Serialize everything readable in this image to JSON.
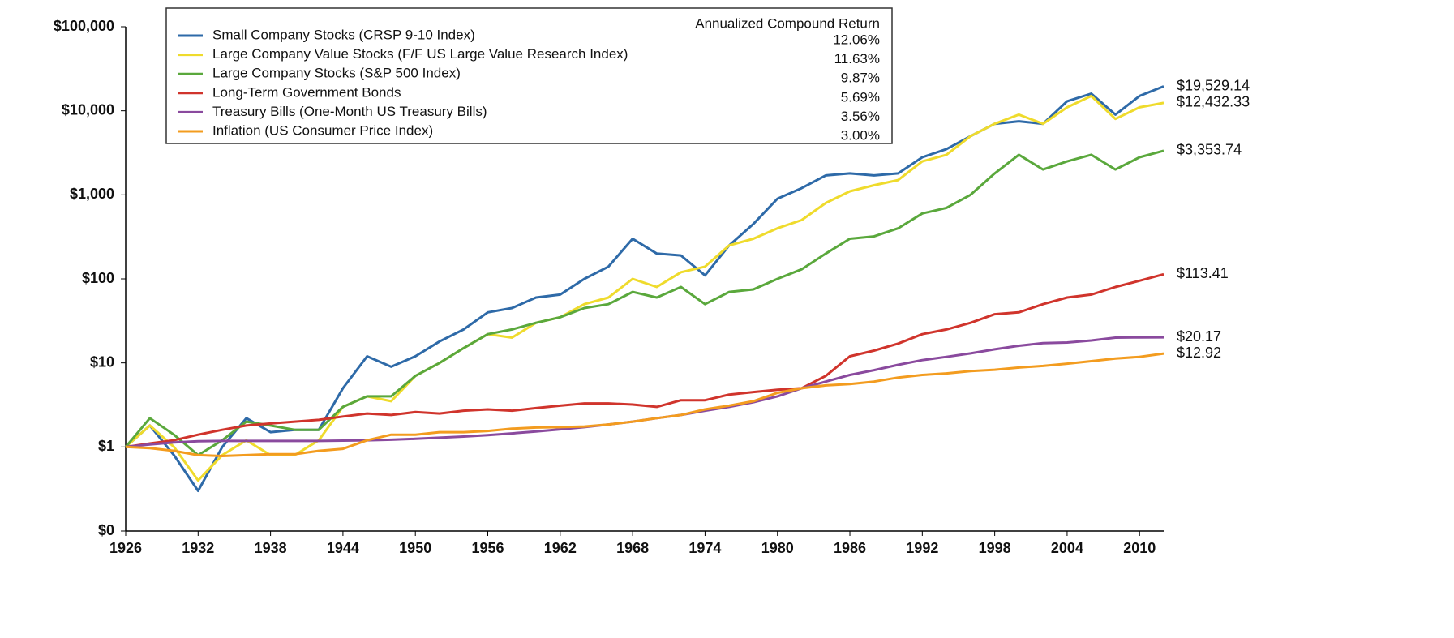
{
  "chart_data": {
    "type": "line",
    "log_y": true,
    "legend_title": "Annualized Compound Return",
    "x": [
      1926,
      1928,
      1930,
      1932,
      1934,
      1936,
      1938,
      1940,
      1942,
      1944,
      1946,
      1948,
      1950,
      1952,
      1954,
      1956,
      1958,
      1960,
      1962,
      1964,
      1966,
      1968,
      1970,
      1972,
      1974,
      1976,
      1978,
      1980,
      1982,
      1984,
      1986,
      1988,
      1990,
      1992,
      1994,
      1996,
      1998,
      2000,
      2002,
      2004,
      2006,
      2008,
      2010,
      2012
    ],
    "xlim": [
      1926,
      2012
    ],
    "xticks": [
      1926,
      1932,
      1938,
      1944,
      1950,
      1956,
      1962,
      1968,
      1974,
      1980,
      1986,
      1992,
      1998,
      2004,
      2010
    ],
    "ylim": [
      0.1,
      100000
    ],
    "yticks": [
      {
        "value": 0.1,
        "label": "$0"
      },
      {
        "value": 1,
        "label": "$1"
      },
      {
        "value": 10,
        "label": "$10"
      },
      {
        "value": 100,
        "label": "$100"
      },
      {
        "value": 1000,
        "label": "$1,000"
      },
      {
        "value": 10000,
        "label": "$10,000"
      },
      {
        "value": 100000,
        "label": "$100,000"
      }
    ],
    "series": [
      {
        "name": "Small Company Stocks (CRSP 9-10 Index)",
        "return": "12.06%",
        "color": "#2e6aa8",
        "end_value_label": "$19,529.14",
        "values": [
          1,
          1.8,
          0.8,
          0.3,
          1.0,
          2.2,
          1.5,
          1.6,
          1.6,
          5,
          12,
          9,
          12,
          18,
          25,
          40,
          45,
          60,
          65,
          100,
          140,
          300,
          200,
          190,
          110,
          250,
          450,
          900,
          1200,
          1700,
          1800,
          1700,
          1800,
          2800,
          3500,
          5000,
          7000,
          7500,
          7000,
          13000,
          16000,
          9000,
          15000,
          19529.14
        ]
      },
      {
        "name": "Large Company Value Stocks (F/F US Large Value Research Index)",
        "return": "11.63%",
        "color": "#efdb2c",
        "end_value_label": "$12,432.33",
        "values": [
          1,
          1.8,
          1.0,
          0.4,
          0.8,
          1.2,
          0.8,
          0.8,
          1.2,
          3,
          4,
          3.5,
          7,
          10,
          15,
          22,
          20,
          30,
          35,
          50,
          60,
          100,
          80,
          120,
          140,
          250,
          300,
          400,
          500,
          800,
          1100,
          1300,
          1500,
          2500,
          3000,
          5000,
          7000,
          9000,
          7000,
          11000,
          15000,
          8000,
          11000,
          12432.33
        ]
      },
      {
        "name": "Large Company Stocks (S&P 500 Index)",
        "return": "9.87%",
        "color": "#5aa83c",
        "end_value_label": "$3,353.74",
        "values": [
          1,
          2.2,
          1.4,
          0.8,
          1.2,
          2.0,
          1.8,
          1.6,
          1.6,
          3,
          4,
          4,
          7,
          10,
          15,
          22,
          25,
          30,
          35,
          45,
          50,
          70,
          60,
          80,
          50,
          70,
          75,
          100,
          130,
          200,
          300,
          320,
          400,
          600,
          700,
          1000,
          1800,
          3000,
          2000,
          2500,
          3000,
          2000,
          2800,
          3353.74
        ]
      },
      {
        "name": "Long-Term Government Bonds",
        "return": "5.69%",
        "color": "#d0342c",
        "end_value_label": "$113.41",
        "values": [
          1,
          1.1,
          1.2,
          1.4,
          1.6,
          1.8,
          1.9,
          2.0,
          2.1,
          2.3,
          2.5,
          2.4,
          2.6,
          2.5,
          2.7,
          2.8,
          2.7,
          2.9,
          3.1,
          3.3,
          3.3,
          3.2,
          3.0,
          3.6,
          3.6,
          4.2,
          4.5,
          4.8,
          5.0,
          7,
          12,
          14,
          17,
          22,
          25,
          30,
          38,
          40,
          50,
          60,
          65,
          80,
          95,
          113.41
        ]
      },
      {
        "name": "Treasury Bills (One-Month US Treasury Bills)",
        "return": "3.56%",
        "color": "#8a4a9e",
        "end_value_label": "$20.17",
        "values": [
          1,
          1.07,
          1.13,
          1.17,
          1.18,
          1.18,
          1.18,
          1.18,
          1.18,
          1.19,
          1.2,
          1.22,
          1.25,
          1.29,
          1.33,
          1.38,
          1.45,
          1.53,
          1.62,
          1.72,
          1.85,
          2.0,
          2.2,
          2.4,
          2.7,
          3.0,
          3.4,
          4.0,
          5.0,
          6.0,
          7.2,
          8.2,
          9.5,
          10.8,
          11.8,
          13,
          14.5,
          16,
          17.2,
          17.5,
          18.5,
          20,
          20.1,
          20.17
        ]
      },
      {
        "name": "Inflation (US Consumer Price Index)",
        "return": "3.00%",
        "color": "#f39c1f",
        "end_value_label": "$12.92",
        "values": [
          1,
          0.97,
          0.9,
          0.8,
          0.78,
          0.8,
          0.82,
          0.82,
          0.9,
          0.95,
          1.2,
          1.4,
          1.4,
          1.5,
          1.5,
          1.55,
          1.65,
          1.7,
          1.72,
          1.75,
          1.85,
          2.0,
          2.2,
          2.4,
          2.8,
          3.1,
          3.5,
          4.4,
          5.0,
          5.4,
          5.6,
          6.0,
          6.7,
          7.2,
          7.5,
          8.0,
          8.3,
          8.8,
          9.2,
          9.8,
          10.5,
          11.3,
          11.8,
          12.92
        ]
      }
    ]
  }
}
